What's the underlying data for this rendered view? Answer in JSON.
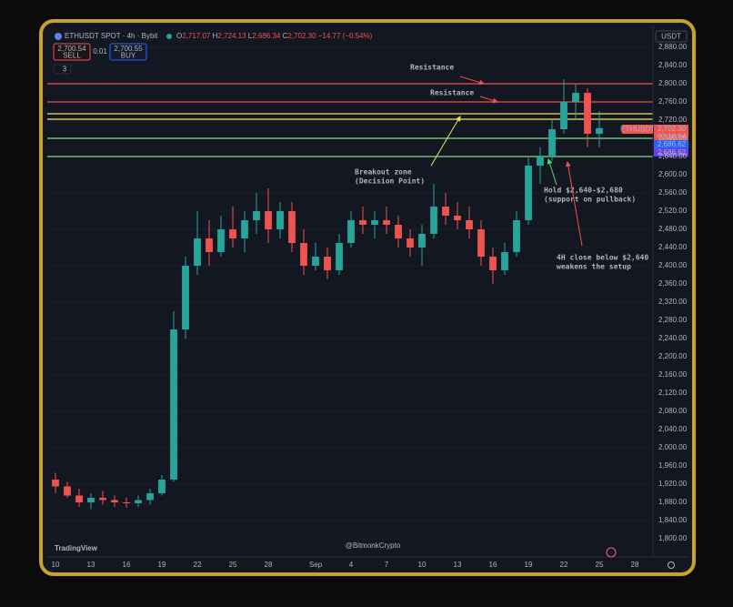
{
  "header": {
    "symbol": "ETHUSDT SPOT · 4h · Bybit",
    "ohlc": [
      {
        "label": "O",
        "value": "2,717.07"
      },
      {
        "label": "H",
        "value": "2,724.13"
      },
      {
        "label": "L",
        "value": "2,686.34"
      },
      {
        "label": "C",
        "value": "2,702.30"
      }
    ],
    "change": "−14.77 (−0.54%)",
    "sell": {
      "price": "2,700.54",
      "label": "SELL"
    },
    "spread": "0.01",
    "buy": {
      "price": "2,700.55",
      "label": "BUY"
    },
    "indicators": "3",
    "currency": "USDT"
  },
  "price_tags": {
    "symbol": "ETHUSDT",
    "last": "2,702.30",
    "countdown": "02:18:54",
    "tag_a": "2,686.62",
    "tag_b": "2,686.62"
  },
  "footer": {
    "logo": "TradingView",
    "watermark": "@BitmonkCrypto"
  },
  "annotations": [
    {
      "lines": [
        "Resistance"
      ],
      "color": "#f0504f"
    },
    {
      "lines": [
        "Resistance"
      ],
      "color": "#f0504f"
    },
    {
      "lines": [
        "Breakout zone",
        "(Decision Point)"
      ],
      "color": "#f2e35b"
    },
    {
      "lines": [
        "Hold $2,640-$2,680",
        "(support on pullback)"
      ],
      "color": "#4fdc6a"
    },
    {
      "lines": [
        "4H close below $2,640",
        "weakens the setup"
      ],
      "color": "#f0504f"
    }
  ],
  "chart_data": {
    "type": "candlestick",
    "categories": [
      "10",
      null,
      null,
      "13",
      null,
      null,
      "16",
      null,
      null,
      "19",
      null,
      null,
      "22",
      null,
      null,
      "25",
      null,
      null,
      "28",
      null,
      null,
      null,
      "Sep",
      null,
      null,
      "4",
      null,
      null,
      "7",
      null,
      null,
      "10",
      null,
      null,
      "13",
      null,
      null,
      "16",
      null,
      null,
      "19",
      null,
      null,
      "22",
      null,
      null,
      "25",
      null,
      null,
      "28",
      null
    ],
    "open": [
      1930,
      1915,
      1895,
      1880,
      1890,
      1885,
      1880,
      1878,
      1885,
      1900,
      1930,
      2260,
      2400,
      2460,
      2430,
      2480,
      2460,
      2500,
      2520,
      2480,
      2520,
      2450,
      2400,
      2420,
      2390,
      2450,
      2500,
      2490,
      2500,
      2490,
      2460,
      2440,
      2470,
      2530,
      2510,
      2500,
      2480,
      2420,
      2390,
      2430,
      2500,
      2620,
      2640,
      2700,
      2760,
      2780,
      2690,
      null,
      null,
      null,
      null
    ],
    "high": [
      1945,
      1925,
      1910,
      1900,
      1905,
      1895,
      1890,
      1895,
      1910,
      1940,
      2300,
      2420,
      2520,
      2500,
      2510,
      2530,
      2520,
      2560,
      2570,
      2540,
      2540,
      2480,
      2450,
      2440,
      2470,
      2520,
      2530,
      2520,
      2530,
      2510,
      2480,
      2490,
      2580,
      2560,
      2540,
      2530,
      2500,
      2440,
      2450,
      2520,
      2640,
      2660,
      2720,
      2810,
      2800,
      2790,
      2740,
      null,
      null,
      null,
      null
    ],
    "low": [
      1900,
      1890,
      1870,
      1865,
      1875,
      1870,
      1868,
      1870,
      1875,
      1895,
      1925,
      2240,
      2380,
      2400,
      2420,
      2440,
      2430,
      2470,
      2450,
      2460,
      2430,
      2380,
      2390,
      2370,
      2380,
      2440,
      2470,
      2460,
      2470,
      2440,
      2420,
      2400,
      2460,
      2490,
      2480,
      2460,
      2400,
      2360,
      2380,
      2420,
      2490,
      2580,
      2630,
      2690,
      2720,
      2660,
      2660,
      null,
      null,
      null,
      null
    ],
    "close": [
      1915,
      1895,
      1880,
      1890,
      1885,
      1880,
      1878,
      1885,
      1900,
      1930,
      2260,
      2400,
      2460,
      2430,
      2480,
      2460,
      2500,
      2520,
      2480,
      2520,
      2450,
      2400,
      2420,
      2390,
      2450,
      2500,
      2490,
      2500,
      2490,
      2460,
      2440,
      2470,
      2530,
      2510,
      2500,
      2480,
      2420,
      2390,
      2430,
      2500,
      2620,
      2640,
      2700,
      2760,
      2780,
      2690,
      2702.3,
      null,
      null,
      null,
      null
    ],
    "up_color": "#26a69a",
    "down_color": "#ef5350",
    "levels": [
      {
        "value": 2800,
        "color": "#f0504f"
      },
      {
        "value": 2760,
        "color": "#f0504f"
      },
      {
        "value": 2734,
        "color": "#f2e35b"
      },
      {
        "value": 2722,
        "color": "#f2e35b"
      },
      {
        "value": 2680,
        "color": "#7ee07f"
      },
      {
        "value": 2640,
        "color": "#7ee07f"
      }
    ],
    "ylim": [
      1764,
      2888
    ],
    "yticks": [
      {
        "value": 2880,
        "label": "2,880.00"
      },
      {
        "value": 2840,
        "label": "2,840.00"
      },
      {
        "value": 2800,
        "label": "2,800.00"
      },
      {
        "value": 2760,
        "label": "2,760.00"
      },
      {
        "value": 2720,
        "label": "2,720.00"
      },
      {
        "value": 2680,
        "label": "2,680.00"
      },
      {
        "value": 2640,
        "label": "2,640.00"
      },
      {
        "value": 2600,
        "label": "2,600.00"
      },
      {
        "value": 2560,
        "label": "2,560.00"
      },
      {
        "value": 2520,
        "label": "2,520.00"
      },
      {
        "value": 2480,
        "label": "2,480.00"
      },
      {
        "value": 2440,
        "label": "2,440.00"
      },
      {
        "value": 2400,
        "label": "2,400.00"
      },
      {
        "value": 2360,
        "label": "2,360.00"
      },
      {
        "value": 2320,
        "label": "2,320.00"
      },
      {
        "value": 2280,
        "label": "2,280.00"
      },
      {
        "value": 2240,
        "label": "2,240.00"
      },
      {
        "value": 2200,
        "label": "2,200.00"
      },
      {
        "value": 2160,
        "label": "2,160.00"
      },
      {
        "value": 2120,
        "label": "2,120.00"
      },
      {
        "value": 2080,
        "label": "2,080.00"
      },
      {
        "value": 2040,
        "label": "2,040.00"
      },
      {
        "value": 2000,
        "label": "2,000.00"
      },
      {
        "value": 1960,
        "label": "1,960.00"
      },
      {
        "value": 1920,
        "label": "1,920.00"
      },
      {
        "value": 1880,
        "label": "1,880.00"
      },
      {
        "value": 1840,
        "label": "1,840.00"
      },
      {
        "value": 1800,
        "label": "1,800.00"
      }
    ],
    "grid": true
  }
}
